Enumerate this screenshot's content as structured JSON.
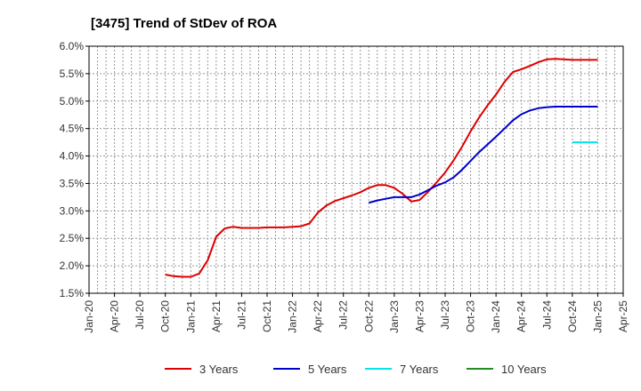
{
  "chart_data": {
    "type": "line",
    "title": "[3475]  Trend of StDev of ROA",
    "xlabel": "",
    "ylabel": "",
    "x_ticks": [
      "Jan-20",
      "Apr-20",
      "Jul-20",
      "Oct-20",
      "Jan-21",
      "Apr-21",
      "Jul-21",
      "Oct-21",
      "Jan-22",
      "Apr-22",
      "Jul-22",
      "Oct-22",
      "Jan-23",
      "Apr-23",
      "Jul-23",
      "Oct-23",
      "Jan-24",
      "Apr-24",
      "Jul-24",
      "Oct-24",
      "Jan-25",
      "Apr-25"
    ],
    "y_ticks": [
      "1.5%",
      "2.0%",
      "2.5%",
      "3.0%",
      "3.5%",
      "4.0%",
      "4.5%",
      "5.0%",
      "5.5%",
      "6.0%"
    ],
    "ylim": [
      1.5,
      6.0
    ],
    "grid": true,
    "legend_position": "bottom",
    "series": [
      {
        "name": "3 Years",
        "color": "#dd0000",
        "points": [
          [
            "Oct-20",
            1.84
          ],
          [
            "Nov-20",
            1.81
          ],
          [
            "Dec-20",
            1.8
          ],
          [
            "Jan-21",
            1.8
          ],
          [
            "Feb-21",
            1.86
          ],
          [
            "Mar-21",
            2.1
          ],
          [
            "Apr-21",
            2.53
          ],
          [
            "May-21",
            2.68
          ],
          [
            "Jun-21",
            2.71
          ],
          [
            "Jul-21",
            2.69
          ],
          [
            "Aug-21",
            2.69
          ],
          [
            "Sep-21",
            2.69
          ],
          [
            "Oct-21",
            2.7
          ],
          [
            "Nov-21",
            2.7
          ],
          [
            "Dec-21",
            2.7
          ],
          [
            "Jan-22",
            2.71
          ],
          [
            "Feb-22",
            2.72
          ],
          [
            "Mar-22",
            2.77
          ],
          [
            "Apr-22",
            2.97
          ],
          [
            "May-22",
            3.1
          ],
          [
            "Jun-22",
            3.18
          ],
          [
            "Jul-22",
            3.23
          ],
          [
            "Aug-22",
            3.28
          ],
          [
            "Sep-22",
            3.34
          ],
          [
            "Oct-22",
            3.42
          ],
          [
            "Nov-22",
            3.47
          ],
          [
            "Dec-22",
            3.47
          ],
          [
            "Jan-23",
            3.42
          ],
          [
            "Feb-23",
            3.31
          ],
          [
            "Mar-23",
            3.17
          ],
          [
            "Apr-23",
            3.2
          ],
          [
            "May-23",
            3.35
          ],
          [
            "Jun-23",
            3.52
          ],
          [
            "Jul-23",
            3.7
          ],
          [
            "Aug-23",
            3.92
          ],
          [
            "Sep-23",
            4.17
          ],
          [
            "Oct-23",
            4.45
          ],
          [
            "Nov-23",
            4.7
          ],
          [
            "Dec-23",
            4.92
          ],
          [
            "Jan-24",
            5.12
          ],
          [
            "Feb-24",
            5.35
          ],
          [
            "Mar-24",
            5.53
          ],
          [
            "Apr-24",
            5.58
          ],
          [
            "May-24",
            5.64
          ],
          [
            "Jun-24",
            5.71
          ],
          [
            "Jul-24",
            5.76
          ],
          [
            "Aug-24",
            5.77
          ],
          [
            "Sep-24",
            5.76
          ],
          [
            "Oct-24",
            5.75
          ],
          [
            "Nov-24",
            5.75
          ],
          [
            "Dec-24",
            5.75
          ],
          [
            "Jan-25",
            5.75
          ]
        ]
      },
      {
        "name": "5 Years",
        "color": "#0000cc",
        "points": [
          [
            "Oct-22",
            3.15
          ],
          [
            "Nov-22",
            3.19
          ],
          [
            "Dec-22",
            3.22
          ],
          [
            "Jan-23",
            3.25
          ],
          [
            "Feb-23",
            3.25
          ],
          [
            "Mar-23",
            3.25
          ],
          [
            "Apr-23",
            3.3
          ],
          [
            "May-23",
            3.38
          ],
          [
            "Jun-23",
            3.46
          ],
          [
            "Jul-23",
            3.52
          ],
          [
            "Aug-23",
            3.61
          ],
          [
            "Sep-23",
            3.75
          ],
          [
            "Oct-23",
            3.91
          ],
          [
            "Nov-23",
            4.07
          ],
          [
            "Dec-23",
            4.21
          ],
          [
            "Jan-24",
            4.35
          ],
          [
            "Feb-24",
            4.5
          ],
          [
            "Mar-24",
            4.65
          ],
          [
            "Apr-24",
            4.76
          ],
          [
            "May-24",
            4.83
          ],
          [
            "Jun-24",
            4.87
          ],
          [
            "Jul-24",
            4.89
          ],
          [
            "Aug-24",
            4.9
          ],
          [
            "Sep-24",
            4.9
          ],
          [
            "Oct-24",
            4.9
          ],
          [
            "Nov-24",
            4.9
          ],
          [
            "Dec-24",
            4.9
          ],
          [
            "Jan-25",
            4.9
          ]
        ]
      },
      {
        "name": "7 Years",
        "color": "#00e5ee",
        "points": [
          [
            "Oct-24",
            4.25
          ],
          [
            "Nov-24",
            4.25
          ],
          [
            "Dec-24",
            4.25
          ],
          [
            "Jan-25",
            4.25
          ]
        ]
      },
      {
        "name": "10 Years",
        "color": "#228b22",
        "points": []
      }
    ]
  }
}
